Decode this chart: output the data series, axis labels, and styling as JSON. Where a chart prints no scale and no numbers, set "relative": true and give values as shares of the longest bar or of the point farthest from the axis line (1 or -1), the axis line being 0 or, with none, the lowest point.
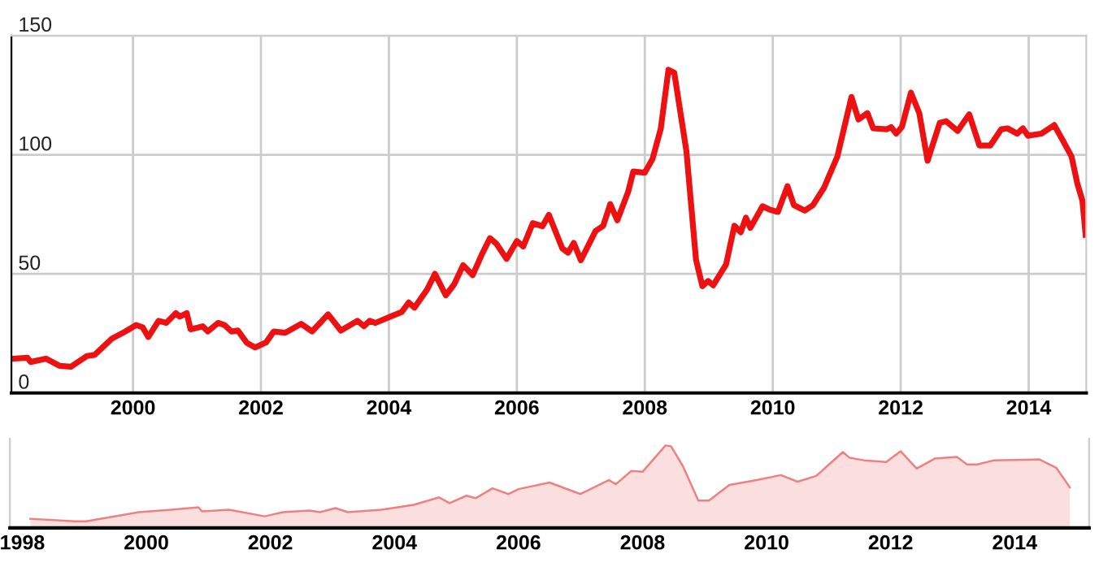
{
  "chart_data": [
    {
      "type": "line",
      "xlim": [
        1998.1,
        2014.9
      ],
      "xticks": [
        2000,
        2002,
        2004,
        2006,
        2008,
        2010,
        2012,
        2014
      ],
      "ylim": [
        0,
        150
      ],
      "yticks": [
        0,
        50,
        100,
        150
      ],
      "grid": true,
      "line_style": "solid",
      "marker": "none",
      "series": [
        {
          "color": "#ee1111",
          "x": [
            1998.13,
            1998.35,
            1998.4,
            1998.64,
            1998.85,
            1999.03,
            1999.28,
            1999.4,
            1999.67,
            1999.88,
            2000.05,
            2000.15,
            2000.24,
            2000.4,
            2000.52,
            2000.67,
            2000.73,
            2000.84,
            2000.9,
            2001.09,
            2001.17,
            2001.33,
            2001.43,
            2001.54,
            2001.64,
            2001.78,
            2001.91,
            2002.08,
            2002.2,
            2002.38,
            2002.63,
            2002.8,
            2003.05,
            2003.25,
            2003.51,
            2003.61,
            2003.7,
            2003.79,
            2004.02,
            2004.2,
            2004.31,
            2004.4,
            2004.6,
            2004.72,
            2004.89,
            2005.02,
            2005.16,
            2005.31,
            2005.45,
            2005.58,
            2005.68,
            2005.84,
            2006.0,
            2006.1,
            2006.25,
            2006.4,
            2006.5,
            2006.71,
            2006.8,
            2006.89,
            2007.0,
            2007.23,
            2007.35,
            2007.46,
            2007.57,
            2007.74,
            2007.82,
            2008.0,
            2008.12,
            2008.25,
            2008.37,
            2008.46,
            2008.65,
            2008.8,
            2008.9,
            2008.99,
            2009.07,
            2009.27,
            2009.4,
            2009.5,
            2009.58,
            2009.65,
            2009.84,
            2009.95,
            2010.08,
            2010.23,
            2010.33,
            2010.5,
            2010.63,
            2010.8,
            2011.01,
            2011.23,
            2011.34,
            2011.48,
            2011.57,
            2011.78,
            2011.85,
            2011.93,
            2012.02,
            2012.16,
            2012.29,
            2012.42,
            2012.61,
            2012.71,
            2012.89,
            2013.07,
            2013.23,
            2013.4,
            2013.57,
            2013.67,
            2013.82,
            2013.91,
            2013.99,
            2014.2,
            2014.4,
            2014.54,
            2014.67,
            2014.76,
            2014.84,
            2014.89
          ],
          "values": [
            14.4,
            14.8,
            13,
            14.4,
            11.4,
            11,
            15.5,
            16,
            22.8,
            25.8,
            28.5,
            27.6,
            23.5,
            30.3,
            29.4,
            33.5,
            32,
            33.5,
            26.7,
            28,
            25.8,
            29.4,
            28.5,
            25.8,
            26.2,
            21,
            19.1,
            21.2,
            25.8,
            25.3,
            29,
            25.8,
            33,
            26.2,
            30.3,
            28,
            30.3,
            29.4,
            32,
            34,
            38,
            35.8,
            43.5,
            50,
            41,
            45.6,
            53.6,
            49.5,
            58,
            65,
            62.7,
            56.3,
            63.8,
            61.5,
            71.3,
            70,
            74.8,
            60.7,
            58.9,
            63,
            55.7,
            68,
            70.2,
            79.3,
            72.5,
            84.5,
            93,
            92.5,
            98.2,
            111,
            135.7,
            134.5,
            101.6,
            56,
            44.8,
            47,
            45.2,
            53.9,
            70.2,
            67.5,
            73.6,
            69.3,
            78.4,
            77,
            76,
            86.8,
            78.9,
            76.6,
            78.9,
            86.1,
            99.3,
            124.3,
            114.8,
            117.5,
            111.1,
            110.7,
            111.6,
            108.9,
            111.8,
            126.1,
            117.5,
            97.5,
            113.4,
            114.1,
            110,
            117,
            103.9,
            103.9,
            110.7,
            111.1,
            108.9,
            111.1,
            108,
            108.9,
            112.5,
            105.7,
            99.3,
            88,
            80.7,
            66.4
          ]
        }
      ]
    },
    {
      "type": "area",
      "relative": true,
      "tick_labels": "x",
      "xlim": [
        1997.8,
        2015.2
      ],
      "xticks": [
        1998,
        2000,
        2002,
        2004,
        2006,
        2008,
        2010,
        2012,
        2014
      ],
      "grid": false,
      "series": [
        {
          "color": "#f08080",
          "x": [
            1998.13,
            1998.85,
            1999.03,
            1999.88,
            2000.4,
            2000.84,
            2000.9,
            2001.33,
            2001.91,
            2002.2,
            2002.63,
            2002.8,
            2003.05,
            2003.25,
            2003.79,
            2004.31,
            2004.72,
            2004.89,
            2005.16,
            2005.31,
            2005.58,
            2005.84,
            2006.0,
            2006.5,
            2007.0,
            2007.46,
            2007.57,
            2007.82,
            2008.0,
            2008.37,
            2008.46,
            2008.65,
            2008.9,
            2009.07,
            2009.4,
            2009.84,
            2010.23,
            2010.5,
            2010.8,
            2011.23,
            2011.34,
            2011.57,
            2011.93,
            2012.16,
            2012.42,
            2012.71,
            2013.07,
            2013.23,
            2013.4,
            2013.67,
            2014.4,
            2014.67,
            2014.89
          ],
          "values": [
            0.11,
            0.08,
            0.08,
            0.19,
            0.22,
            0.25,
            0.2,
            0.22,
            0.14,
            0.19,
            0.21,
            0.19,
            0.24,
            0.19,
            0.22,
            0.28,
            0.37,
            0.3,
            0.39,
            0.36,
            0.48,
            0.41,
            0.47,
            0.55,
            0.41,
            0.58,
            0.53,
            0.69,
            0.68,
            1,
            0.99,
            0.75,
            0.33,
            0.33,
            0.52,
            0.58,
            0.64,
            0.56,
            0.63,
            0.92,
            0.85,
            0.82,
            0.8,
            0.93,
            0.72,
            0.84,
            0.86,
            0.77,
            0.77,
            0.82,
            0.83,
            0.73,
            0.49
          ]
        }
      ]
    }
  ]
}
